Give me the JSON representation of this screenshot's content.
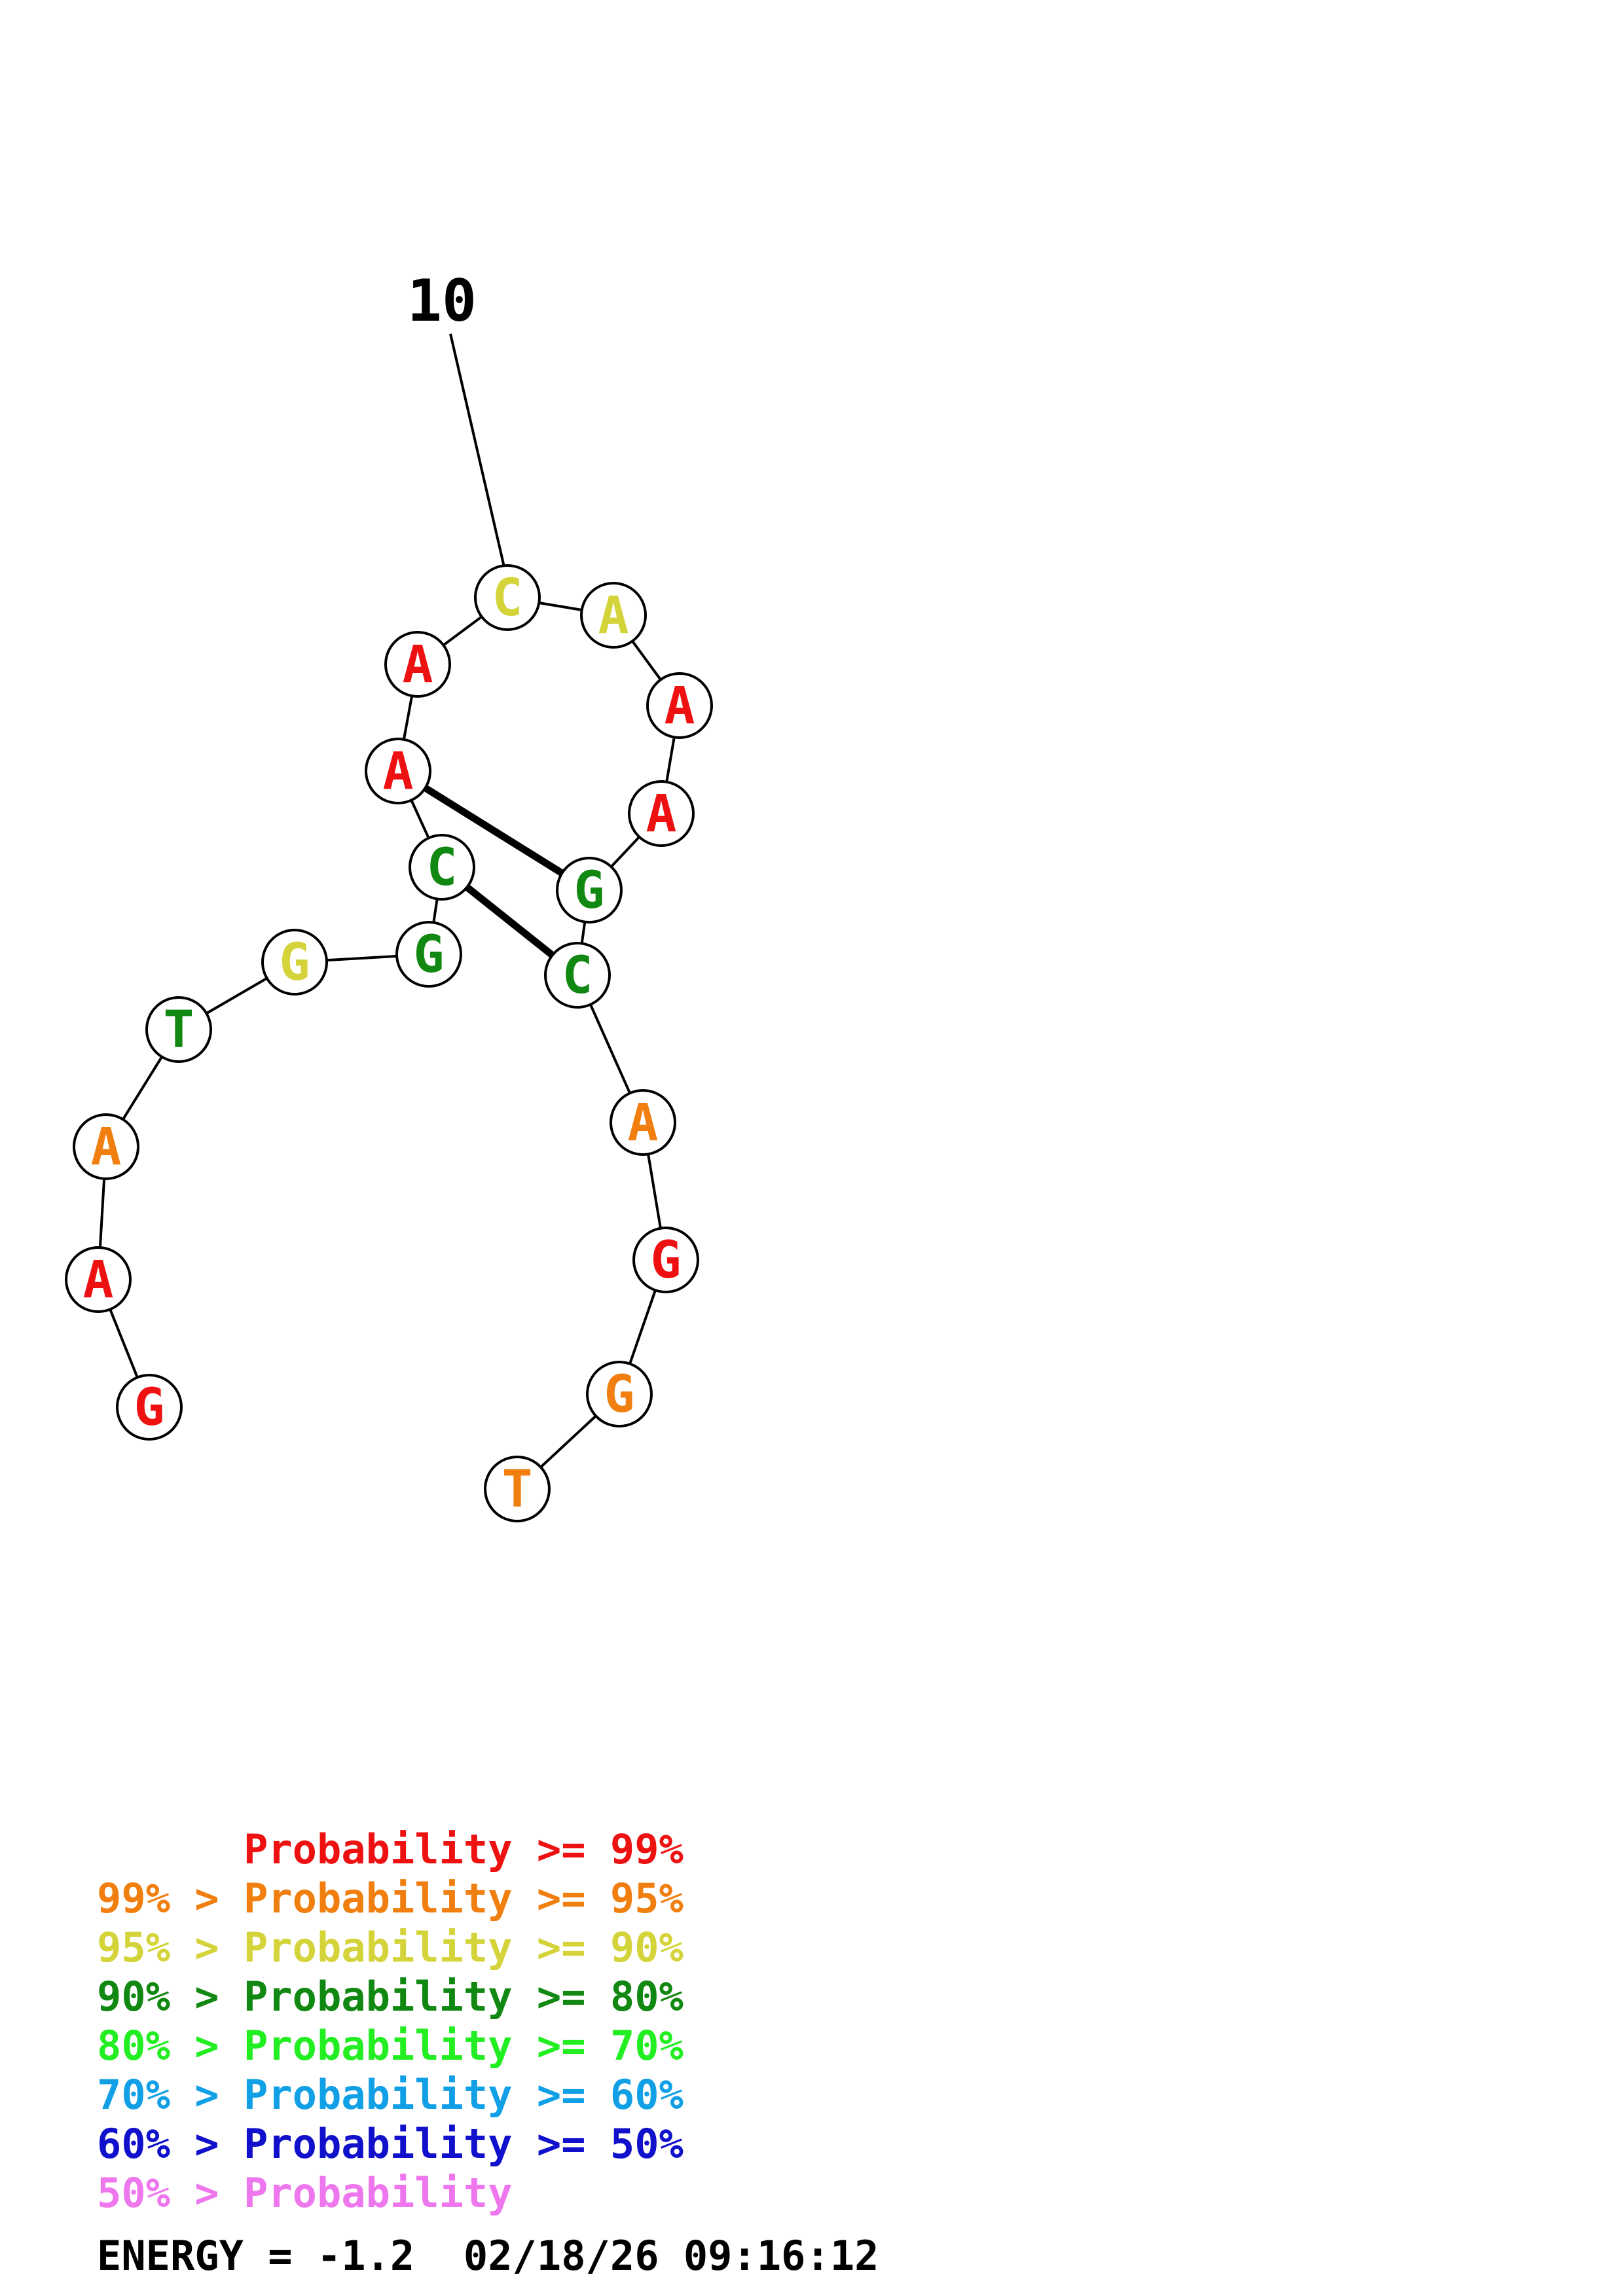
{
  "structure": {
    "position_label": "10",
    "nucleotides": [
      {
        "letter": "G",
        "color": "#ee1111"
      },
      {
        "letter": "A",
        "color": "#ee1111"
      },
      {
        "letter": "A",
        "color": "#f07f10"
      },
      {
        "letter": "T",
        "color": "#118811"
      },
      {
        "letter": "G",
        "color": "#d4d43a"
      },
      {
        "letter": "G",
        "color": "#118811"
      },
      {
        "letter": "C",
        "color": "#118811"
      },
      {
        "letter": "A",
        "color": "#ee1111"
      },
      {
        "letter": "A",
        "color": "#ee1111"
      },
      {
        "letter": "C",
        "color": "#d4d43a"
      },
      {
        "letter": "A",
        "color": "#d4d43a"
      },
      {
        "letter": "A",
        "color": "#ee1111"
      },
      {
        "letter": "A",
        "color": "#ee1111"
      },
      {
        "letter": "G",
        "color": "#118811"
      },
      {
        "letter": "C",
        "color": "#118811"
      },
      {
        "letter": "A",
        "color": "#f07f10"
      },
      {
        "letter": "G",
        "color": "#ee1111"
      },
      {
        "letter": "G",
        "color": "#f07f10"
      },
      {
        "letter": "T",
        "color": "#f07f10"
      }
    ],
    "base_pairs": [
      [
        6,
        14
      ],
      [
        7,
        13
      ]
    ]
  },
  "legend": [
    {
      "prefix": "    ",
      "lower": "",
      "text": "Probability >= 99%",
      "color": "#ee1111"
    },
    {
      "prefix": "",
      "lower": "99% > ",
      "text": "Probability >= 95%",
      "color": "#f07f10"
    },
    {
      "prefix": "",
      "lower": "95% > ",
      "text": "Probability >= 90%",
      "color": "#d4d43a"
    },
    {
      "prefix": "",
      "lower": "90% > ",
      "text": "Probability >= 80%",
      "color": "#118811"
    },
    {
      "prefix": "",
      "lower": "80% > ",
      "text": "Probability >= 70%",
      "color": "#22ee22"
    },
    {
      "prefix": "",
      "lower": "70% > ",
      "text": "Probability >= 60%",
      "color": "#11a0e6"
    },
    {
      "prefix": "",
      "lower": "60% > ",
      "text": "Probability >= 50%",
      "color": "#1111cc"
    },
    {
      "prefix": "",
      "lower": "50% > ",
      "text": "Probability",
      "color": "#ee77ee"
    }
  ],
  "footer": {
    "energy_text": "ENERGY = -1.2  02/18/26 09:16:12"
  }
}
